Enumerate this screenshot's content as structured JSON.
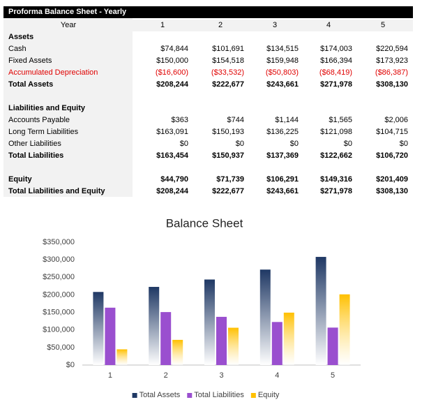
{
  "table": {
    "title": "Proforma Balance Sheet - Yearly",
    "header": [
      "Year",
      "1",
      "2",
      "3",
      "4",
      "5"
    ],
    "sections": [
      {
        "heading": "Assets",
        "rows": [
          {
            "label": "Cash",
            "cells": [
              "$74,844",
              "$101,691",
              "$134,515",
              "$174,003",
              "$220,594"
            ]
          },
          {
            "label": "Fixed Assets",
            "cells": [
              "$150,000",
              "$154,518",
              "$159,948",
              "$166,394",
              "$173,923"
            ]
          },
          {
            "label": "Accumulated Depreciation",
            "negative": true,
            "cells": [
              "($16,600)",
              "($33,532)",
              "($50,803)",
              "($68,419)",
              "($86,387)"
            ]
          },
          {
            "label": "Total Assets",
            "bold": true,
            "cells": [
              "$208,244",
              "$222,677",
              "$243,661",
              "$271,978",
              "$308,130"
            ]
          }
        ]
      },
      {
        "heading": "Liabilities and Equity",
        "rows": [
          {
            "label": "Accounts Payable",
            "cells": [
              "$363",
              "$744",
              "$1,144",
              "$1,565",
              "$2,006"
            ]
          },
          {
            "label": "Long Term Liabilities",
            "cells": [
              "$163,091",
              "$150,193",
              "$136,225",
              "$121,098",
              "$104,715"
            ]
          },
          {
            "label": "Other Liabilities",
            "cells": [
              "$0",
              "$0",
              "$0",
              "$0",
              "$0"
            ]
          },
          {
            "label": "Total Liabilities",
            "bold": true,
            "cells": [
              "$163,454",
              "$150,937",
              "$137,369",
              "$122,662",
              "$106,720"
            ]
          }
        ]
      },
      {
        "rows": [
          {
            "label": "Equity",
            "bold": true,
            "cells": [
              "$44,790",
              "$71,739",
              "$106,291",
              "$149,316",
              "$201,409"
            ]
          },
          {
            "label": "Total Liabilities and Equity",
            "bold": true,
            "cells": [
              "$208,244",
              "$222,677",
              "$243,661",
              "$271,978",
              "$308,130"
            ]
          }
        ]
      }
    ]
  },
  "chart_data": {
    "type": "bar",
    "title": "Balance Sheet",
    "categories": [
      "1",
      "2",
      "3",
      "4",
      "5"
    ],
    "series": [
      {
        "name": "Total Assets",
        "color": "#1f3864",
        "values": [
          208244,
          222677,
          243661,
          271978,
          308130
        ]
      },
      {
        "name": "Total Liabilities",
        "color": "#9a4fcf",
        "values": [
          163454,
          150937,
          137369,
          122662,
          106720
        ]
      },
      {
        "name": "Equity",
        "color": "#ffc000",
        "values": [
          44790,
          71739,
          106291,
          149316,
          201409
        ]
      }
    ],
    "ylim": [
      0,
      350000
    ],
    "yticks": [
      {
        "value": 0,
        "label": "$0"
      },
      {
        "value": 50000,
        "label": "$50,000"
      },
      {
        "value": 100000,
        "label": "$100,000"
      },
      {
        "value": 150000,
        "label": "$150,000"
      },
      {
        "value": 200000,
        "label": "$200,000"
      },
      {
        "value": 250000,
        "label": "$250,000"
      },
      {
        "value": 300000,
        "label": "$300,000"
      },
      {
        "value": 350000,
        "label": "$350,000"
      }
    ],
    "grid": false,
    "legend": "bottom"
  }
}
